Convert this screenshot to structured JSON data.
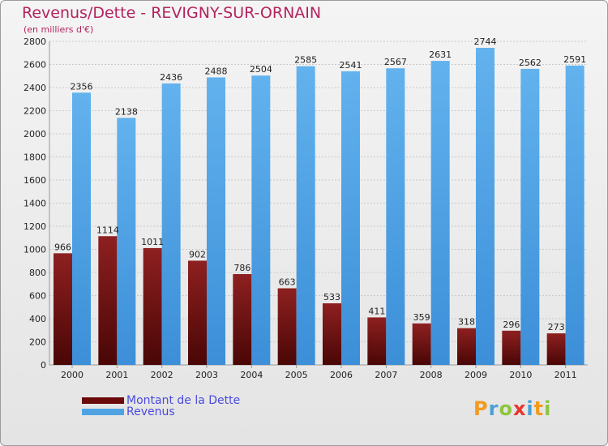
{
  "header": {
    "title": "Revenus/Dette - REVIGNY-SUR-ORNAIN",
    "subtitle": "(en milliers d'€)"
  },
  "legend": [
    {
      "label": "Montant de la Dette",
      "color": "#6b0a0a"
    },
    {
      "label": "Revenus",
      "color": "#4fa3e3"
    }
  ],
  "logo": {
    "letters": [
      "P",
      "r",
      "o",
      "x",
      "i",
      "t",
      "i"
    ]
  },
  "colors": {
    "debt_top": "#8e2020",
    "debt_bottom": "#4a0606",
    "rev_top": "#62b2ee",
    "rev_bottom": "#3c8fd8",
    "title": "#b3245f",
    "logo": [
      "#f29b1d",
      "#4aa0d8",
      "#8cc63f",
      "#e8362d",
      "#4aa0d8",
      "#f29b1d",
      "#8cc63f"
    ]
  },
  "chart_data": {
    "type": "bar",
    "title": "Revenus/Dette - REVIGNY-SUR-ORNAIN",
    "subtitle": "(en milliers d'€)",
    "categories": [
      "2000",
      "2001",
      "2002",
      "2003",
      "2004",
      "2005",
      "2006",
      "2007",
      "2008",
      "2009",
      "2010",
      "2011"
    ],
    "series": [
      {
        "name": "Montant de la Dette",
        "values": [
          966,
          1114,
          1011,
          902,
          786,
          663,
          533,
          411,
          359,
          318,
          296,
          273
        ]
      },
      {
        "name": "Revenus",
        "values": [
          2356,
          2138,
          2436,
          2488,
          2504,
          2585,
          2541,
          2567,
          2631,
          2744,
          2562,
          2591
        ]
      }
    ],
    "ylim": [
      0,
      2800
    ],
    "yticks": [
      0,
      200,
      400,
      600,
      800,
      1000,
      1200,
      1400,
      1600,
      1800,
      2000,
      2200,
      2400,
      2600,
      2800
    ],
    "grid": true,
    "legend_position": "bottom-left"
  }
}
